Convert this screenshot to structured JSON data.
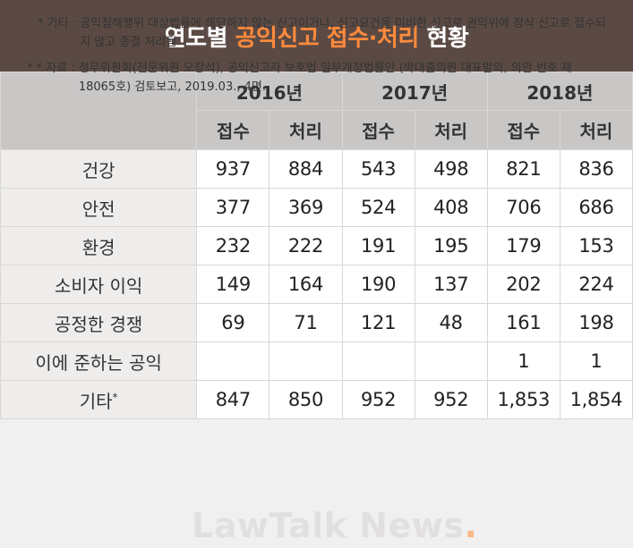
{
  "title": {
    "part1": "연도별 ",
    "part2": "공익신고 접수·처리",
    "part3": " 현황"
  },
  "accent_color": "#ff8a3d",
  "header_bg": "#5b4a44",
  "years": [
    "2016년",
    "2017년",
    "2018년"
  ],
  "sub_headers": [
    "접수",
    "처리",
    "접수",
    "처리",
    "접수",
    "처리"
  ],
  "rows": [
    {
      "label": "건강",
      "values": [
        "937",
        "884",
        "543",
        "498",
        "821",
        "836"
      ]
    },
    {
      "label": "안전",
      "values": [
        "377",
        "369",
        "524",
        "408",
        "706",
        "686"
      ]
    },
    {
      "label": "환경",
      "values": [
        "232",
        "222",
        "191",
        "195",
        "179",
        "153"
      ]
    },
    {
      "label": "소비자 이익",
      "values": [
        "149",
        "164",
        "190",
        "137",
        "202",
        "224"
      ]
    },
    {
      "label": "공정한 경쟁",
      "values": [
        "69",
        "71",
        "121",
        "48",
        "161",
        "198"
      ]
    },
    {
      "label": "이에 준하는 공익",
      "values": [
        "",
        "",
        "",
        "",
        "1",
        "1"
      ]
    },
    {
      "label": "기타",
      "label_mark": "*",
      "values": [
        "847",
        "850",
        "952",
        "952",
        "1,853",
        "1,854"
      ]
    }
  ],
  "notes": {
    "note1_lead": "* 기타 : ",
    "note1_text": "공익침해행위 대상법률에 해당하지 않는 신고이거나, 신고요건을 미비한 신고로 권익위에 정식 신고로 접수되지 않고 종결 처리됨",
    "note2_lead": "* * 자료 : ",
    "note2_text": "정무위원회(전문위원 오창석), 공익신고자 보호법 일부개정법률안 (박대출의원 대표발의, 의안 번호 제 18065호) 검토보고, 2019.03., 4면."
  },
  "watermark": {
    "text": "LawTalk News",
    "dot": "."
  }
}
